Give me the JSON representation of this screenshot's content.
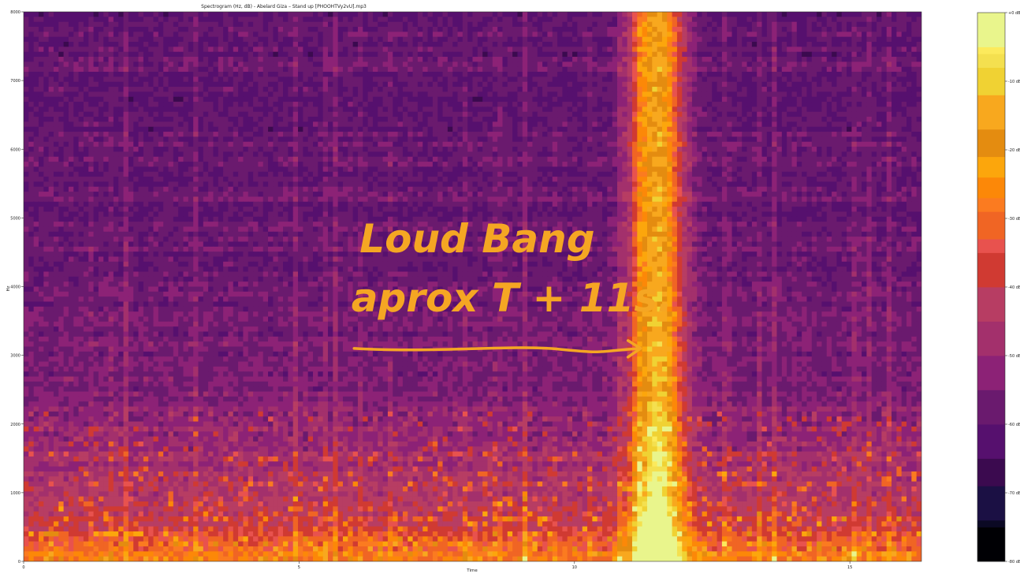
{
  "chart_data": {
    "type": "heatmap",
    "title": "Spectrogram (Hz, dB) - Abelard Giza – Stand up [PHOOHTVy2vU].mp3",
    "xlabel": "Time",
    "ylabel": "Hz",
    "xlim": [
      0,
      16.3
    ],
    "ylim": [
      0,
      8000
    ],
    "x_ticks": [
      {
        "value": 0,
        "label": "0"
      },
      {
        "value": 5,
        "label": "5"
      },
      {
        "value": 10,
        "label": "10"
      },
      {
        "value": 15,
        "label": "15"
      }
    ],
    "y_ticks": [
      {
        "value": 0,
        "label": "0"
      },
      {
        "value": 1000,
        "label": "1000"
      },
      {
        "value": 2000,
        "label": "2000"
      },
      {
        "value": 3000,
        "label": "3000"
      },
      {
        "value": 4000,
        "label": "4000"
      },
      {
        "value": 5000,
        "label": "5000"
      },
      {
        "value": 6000,
        "label": "6000"
      },
      {
        "value": 7000,
        "label": "7000"
      },
      {
        "value": 8000,
        "label": "8000"
      }
    ],
    "colorbar": {
      "min": -80,
      "max": 0,
      "ticks": [
        {
          "value": 0,
          "label": "+0 dB"
        },
        {
          "value": -10,
          "label": "-10 dB"
        },
        {
          "value": -20,
          "label": "-20 dB"
        },
        {
          "value": -30,
          "label": "-30 dB"
        },
        {
          "value": -40,
          "label": "-40 dB"
        },
        {
          "value": -50,
          "label": "-50 dB"
        },
        {
          "value": -60,
          "label": "-60 dB"
        },
        {
          "value": -70,
          "label": "-70 dB"
        },
        {
          "value": -80,
          "label": "-80 dB"
        }
      ],
      "levels": [
        {
          "from": -80,
          "to": -75,
          "color": "#000004"
        },
        {
          "from": -75,
          "to": -74,
          "color": "#0b0924"
        },
        {
          "from": -74,
          "to": -69,
          "color": "#1b1044"
        },
        {
          "from": -69,
          "to": -65,
          "color": "#3b0a4f"
        },
        {
          "from": -65,
          "to": -60,
          "color": "#56106e"
        },
        {
          "from": -60,
          "to": -55,
          "color": "#6a1a6e"
        },
        {
          "from": -55,
          "to": -50,
          "color": "#8c2276"
        },
        {
          "from": -50,
          "to": -45,
          "color": "#a3306c"
        },
        {
          "from": -45,
          "to": -40,
          "color": "#b73d63"
        },
        {
          "from": -40,
          "to": -35,
          "color": "#d03a32"
        },
        {
          "from": -35,
          "to": -33,
          "color": "#e8524e"
        },
        {
          "from": -33,
          "to": -29,
          "color": "#f06524"
        },
        {
          "from": -29,
          "to": -27,
          "color": "#fb7b20"
        },
        {
          "from": -27,
          "to": -24,
          "color": "#fc8808"
        },
        {
          "from": -24,
          "to": -21,
          "color": "#fca60c"
        },
        {
          "from": -21,
          "to": -17,
          "color": "#e48c10"
        },
        {
          "from": -17,
          "to": -12,
          "color": "#f8a81e"
        },
        {
          "from": -12,
          "to": -8,
          "color": "#f0d233"
        },
        {
          "from": -8,
          "to": -6,
          "color": "#f4e04f"
        },
        {
          "from": -6,
          "to": -5,
          "color": "#fcea5c"
        },
        {
          "from": -5,
          "to": 0,
          "color": "#e9f58c"
        }
      ]
    },
    "features": {
      "loud_event_time": 11.5,
      "loud_event_width": 0.7,
      "annotation_arrow_from": [
        6.0,
        3100
      ],
      "annotation_arrow_to": [
        11.2,
        3100
      ]
    },
    "annotation": {
      "lines": [
        "Loud Bang",
        "aprox T + 11s."
      ],
      "color": "#f5a623"
    }
  }
}
